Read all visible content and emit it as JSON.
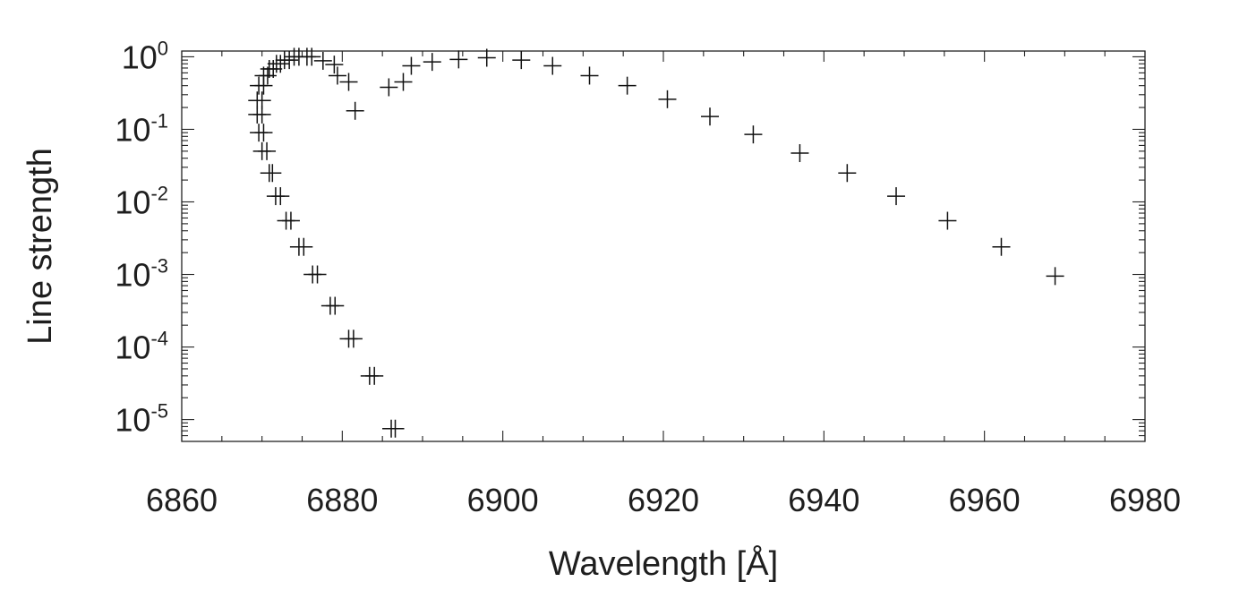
{
  "chart_data": {
    "type": "scatter",
    "title": "",
    "xlabel": "Wavelength [Å]",
    "ylabel": "Line strength",
    "xlim": [
      6860,
      6980
    ],
    "ylim": [
      5e-06,
      1.2
    ],
    "y_scale": "log",
    "grid": false,
    "marker": "plus",
    "x_ticks": [
      "6860",
      "6880",
      "6900",
      "6920",
      "6940",
      "6960",
      "6980"
    ],
    "y_ticks": [
      {
        "base": "10",
        "exp": "0",
        "value": 1
      },
      {
        "base": "10",
        "exp": "-1",
        "value": 0.1
      },
      {
        "base": "10",
        "exp": "-2",
        "value": 0.01
      },
      {
        "base": "10",
        "exp": "-3",
        "value": 0.001
      },
      {
        "base": "10",
        "exp": "-4",
        "value": 0.0001
      },
      {
        "base": "10",
        "exp": "-5",
        "value": 1e-05
      }
    ],
    "points": [
      [
        6886.1,
        7.5e-06
      ],
      [
        6886.6,
        7.5e-06
      ],
      [
        6883.4,
        4e-05
      ],
      [
        6884.0,
        4e-05
      ],
      [
        6880.8,
        0.00013
      ],
      [
        6881.4,
        0.00013
      ],
      [
        6878.5,
        0.00037
      ],
      [
        6879.1,
        0.00037
      ],
      [
        6876.3,
        0.001
      ],
      [
        6876.9,
        0.001
      ],
      [
        6874.6,
        0.0024
      ],
      [
        6875.2,
        0.0024
      ],
      [
        6873.0,
        0.0055
      ],
      [
        6873.6,
        0.0055
      ],
      [
        6871.7,
        0.012
      ],
      [
        6872.3,
        0.012
      ],
      [
        6870.9,
        0.025
      ],
      [
        6871.3,
        0.025
      ],
      [
        6870.0,
        0.05
      ],
      [
        6870.6,
        0.05
      ],
      [
        6869.6,
        0.09
      ],
      [
        6870.2,
        0.09
      ],
      [
        6869.4,
        0.16
      ],
      [
        6870.0,
        0.16
      ],
      [
        6869.4,
        0.25
      ],
      [
        6870.0,
        0.25
      ],
      [
        6869.6,
        0.4
      ],
      [
        6870.2,
        0.4
      ],
      [
        6870.2,
        0.55
      ],
      [
        6870.7,
        0.55
      ],
      [
        6870.9,
        0.68
      ],
      [
        6871.4,
        0.68
      ],
      [
        6871.8,
        0.8
      ],
      [
        6872.3,
        0.8
      ],
      [
        6872.8,
        0.9
      ],
      [
        6873.4,
        0.9
      ],
      [
        6874.0,
        1.0
      ],
      [
        6874.6,
        1.0
      ],
      [
        6875.6,
        1.0
      ],
      [
        6876.2,
        1.0
      ],
      [
        6877.6,
        0.88
      ],
      [
        6879.0,
        0.78
      ],
      [
        6879.4,
        0.55
      ],
      [
        6880.8,
        0.45
      ],
      [
        6881.6,
        0.18
      ],
      [
        6885.8,
        0.38
      ],
      [
        6887.6,
        0.45
      ],
      [
        6888.6,
        0.75
      ],
      [
        6891.2,
        0.85
      ],
      [
        6894.5,
        0.92
      ],
      [
        6898.0,
        0.97
      ],
      [
        6902.3,
        0.9
      ],
      [
        6906.2,
        0.75
      ],
      [
        6910.8,
        0.55
      ],
      [
        6915.5,
        0.4
      ],
      [
        6920.5,
        0.26
      ],
      [
        6925.8,
        0.15
      ],
      [
        6931.2,
        0.085
      ],
      [
        6937.0,
        0.047
      ],
      [
        6942.9,
        0.025
      ],
      [
        6949.0,
        0.012
      ],
      [
        6955.4,
        0.0055
      ],
      [
        6962.1,
        0.0024
      ],
      [
        6968.8,
        0.00095
      ]
    ]
  }
}
